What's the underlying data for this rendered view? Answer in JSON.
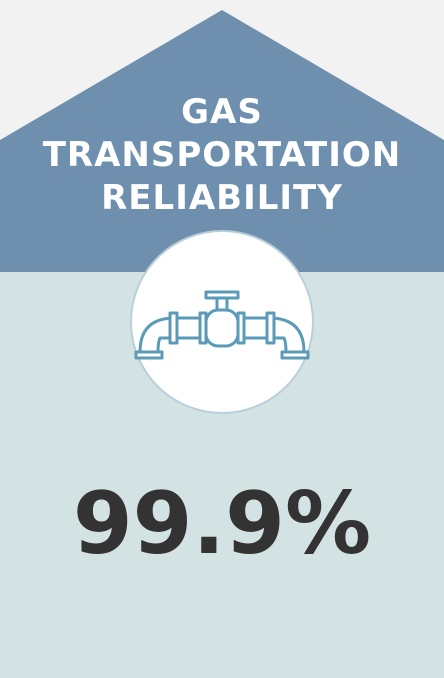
{
  "header": {
    "title_lines": [
      "GAS",
      "TRANSPORTATION",
      "RELIABILITY"
    ]
  },
  "metric": {
    "value": "99.9%"
  }
}
